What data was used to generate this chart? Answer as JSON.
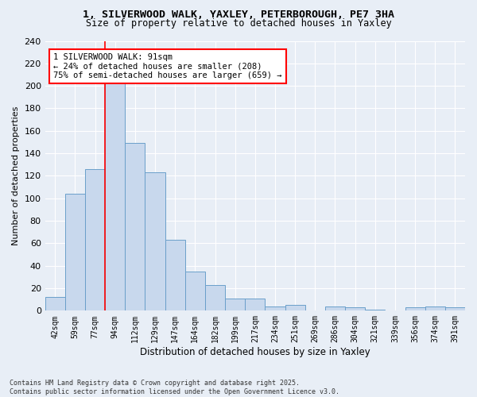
{
  "title1": "1, SILVERWOOD WALK, YAXLEY, PETERBOROUGH, PE7 3HA",
  "title2": "Size of property relative to detached houses in Yaxley",
  "xlabel": "Distribution of detached houses by size in Yaxley",
  "ylabel": "Number of detached properties",
  "bin_labels": [
    "42sqm",
    "59sqm",
    "77sqm",
    "94sqm",
    "112sqm",
    "129sqm",
    "147sqm",
    "164sqm",
    "182sqm",
    "199sqm",
    "217sqm",
    "234sqm",
    "251sqm",
    "269sqm",
    "286sqm",
    "304sqm",
    "321sqm",
    "339sqm",
    "356sqm",
    "374sqm",
    "391sqm"
  ],
  "bin_values": [
    12,
    104,
    126,
    204,
    149,
    123,
    63,
    35,
    23,
    11,
    11,
    4,
    5,
    0,
    4,
    3,
    1,
    0,
    3,
    4,
    3
  ],
  "bar_color": "#c8d8ed",
  "bar_edge_color": "#6a9fca",
  "bg_color": "#e8eef6",
  "grid_color": "#ffffff",
  "redline_bin": 3,
  "annotation_text": "1 SILVERWOOD WALK: 91sqm\n← 24% of detached houses are smaller (208)\n75% of semi-detached houses are larger (659) →",
  "footer": "Contains HM Land Registry data © Crown copyright and database right 2025.\nContains public sector information licensed under the Open Government Licence v3.0.",
  "ylim": [
    0,
    240
  ],
  "yticks": [
    0,
    20,
    40,
    60,
    80,
    100,
    120,
    140,
    160,
    180,
    200,
    220,
    240
  ]
}
